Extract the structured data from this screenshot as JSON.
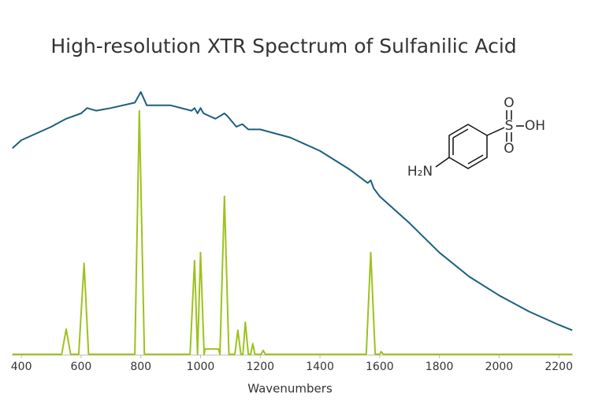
{
  "chart_data": {
    "type": "line",
    "title": "High-resolution XTR Spectrum of Sulfanilic Acid",
    "x_label": "Wavenumbers",
    "xlim": [
      368,
      2247
    ],
    "xticks": [
      400,
      600,
      800,
      1000,
      1200,
      1400,
      1600,
      1800,
      2000,
      2200
    ],
    "ylim": [
      0,
      100
    ],
    "structure_labels": [
      "O",
      "S",
      "OH",
      "O",
      "H₂N"
    ],
    "series": [
      {
        "color": "#1c5f7f",
        "x": [
          370,
          400,
          500,
          550,
          600,
          620,
          650,
          700,
          780,
          800,
          820,
          900,
          970,
          980,
          990,
          1000,
          1010,
          1050,
          1080,
          1090,
          1120,
          1140,
          1160,
          1200,
          1300,
          1400,
          1500,
          1560,
          1570,
          1580,
          1600,
          1700,
          1800,
          1900,
          2000,
          2100,
          2200,
          2245
        ],
        "values": [
          77,
          80,
          85,
          88,
          90,
          92,
          91,
          92,
          94,
          98,
          93,
          93,
          91,
          92,
          90,
          92,
          90,
          88,
          90,
          89,
          85,
          86,
          84,
          84,
          81,
          76,
          69,
          64,
          65,
          62,
          59,
          49,
          38,
          29,
          22,
          16,
          11,
          9
        ]
      },
      {
        "color": "#9dc21e",
        "x": [
          370,
          535,
          550,
          565,
          592,
          610,
          625,
          780,
          795,
          812,
          965,
          980,
          990,
          1000,
          1012,
          1015,
          1060,
          1065,
          1080,
          1095,
          1115,
          1125,
          1135,
          1142,
          1150,
          1160,
          1168,
          1175,
          1182,
          1203,
          1210,
          1217,
          1555,
          1570,
          1585,
          1600,
          1605,
          1612,
          2245
        ],
        "values": [
          0,
          0,
          9.4,
          0,
          0,
          34,
          0,
          0,
          91,
          0,
          0,
          35,
          0,
          38,
          0,
          2,
          2,
          0,
          59,
          0,
          0,
          9,
          0,
          0,
          12,
          0,
          0,
          4,
          0,
          0,
          1.5,
          0,
          0,
          38,
          0,
          0,
          1,
          0,
          0
        ]
      }
    ]
  }
}
